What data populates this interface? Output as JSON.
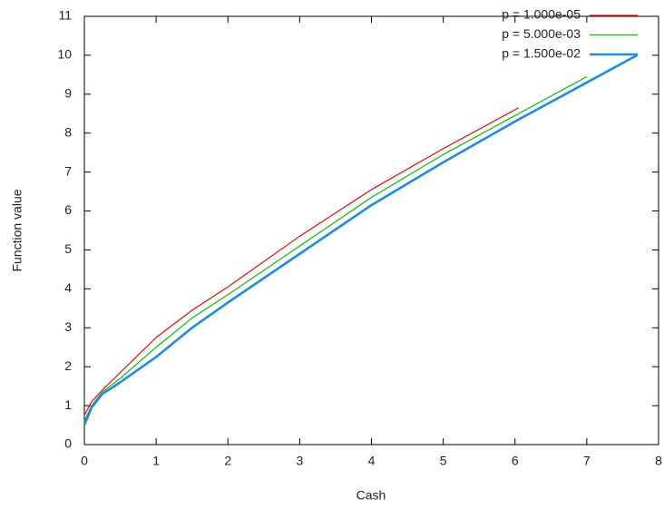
{
  "chart_data": {
    "type": "line",
    "x_label": "Cash",
    "y_label": "Function value",
    "x": [
      0,
      0.1,
      0.25,
      0.5,
      1,
      1.5,
      2,
      3,
      4,
      5,
      6,
      6.05,
      7,
      7.7
    ],
    "series": [
      {
        "name": "p = 1.000e-05",
        "color": "#ff0000",
        "width": 1.2,
        "values": [
          0.75,
          1.1,
          1.4,
          1.85,
          2.75,
          3.45,
          4.05,
          5.35,
          6.55,
          7.6,
          8.6,
          8.65,
          null,
          null
        ]
      },
      {
        "name": "p = 5.000e-03",
        "color": "#00c000",
        "width": 1.2,
        "values": [
          0.6,
          1.0,
          1.35,
          1.7,
          2.5,
          3.25,
          3.85,
          5.1,
          6.35,
          7.45,
          8.45,
          8.5,
          9.45,
          null
        ]
      },
      {
        "name": "p = 1.500e-02",
        "color": "#1a8cf0",
        "width": 2.6,
        "values": [
          0.5,
          0.95,
          1.3,
          1.6,
          2.25,
          3.0,
          3.65,
          4.9,
          6.15,
          7.25,
          8.3,
          8.35,
          9.3,
          10.0
        ]
      }
    ],
    "xlim": [
      0,
      8
    ],
    "ylim": [
      0,
      11
    ],
    "xticks": [
      0,
      1,
      2,
      3,
      4,
      5,
      6,
      7,
      8
    ],
    "yticks": [
      0,
      1,
      2,
      3,
      4,
      5,
      6,
      7,
      8,
      9,
      10,
      11
    ],
    "grid": false,
    "legend": "top-right"
  }
}
